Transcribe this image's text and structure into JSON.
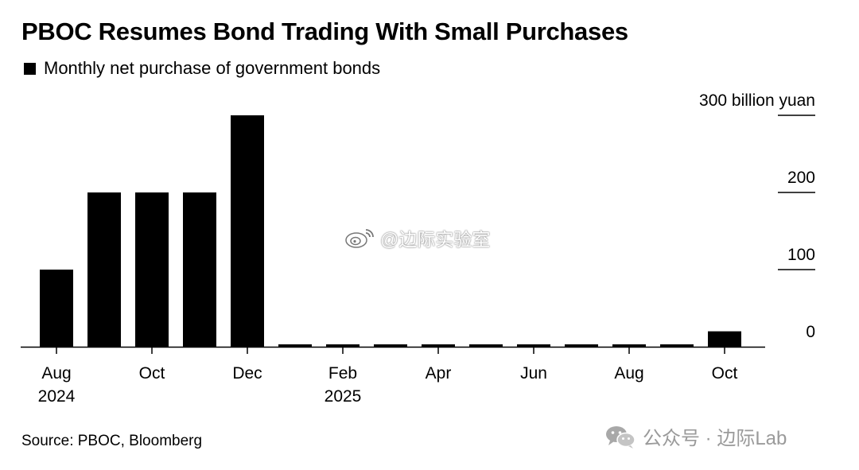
{
  "header": {
    "title": "PBOC Resumes Bond Trading With Small Purchases"
  },
  "legend": {
    "label": "Monthly net purchase of government bonds",
    "color": "#000000"
  },
  "footer": {
    "source": "Source: PBOC, Bloomberg"
  },
  "watermarks": {
    "center_text": "@边际实验室",
    "center_icon": "weibo-icon",
    "bottom_text": "公众号 · 边际Lab",
    "bottom_icon": "wechat-icon"
  },
  "chart_data": {
    "type": "bar",
    "categories": [
      "Aug 2024",
      "Sep 2024",
      "Oct 2024",
      "Nov 2024",
      "Dec 2024",
      "Jan 2025",
      "Feb 2025",
      "Mar 2025",
      "Apr 2025",
      "May 2025",
      "Jun 2025",
      "Jul 2025",
      "Aug 2025",
      "Sep 2025",
      "Oct 2025"
    ],
    "values": [
      100,
      200,
      200,
      200,
      300,
      0,
      0,
      0,
      0,
      0,
      0,
      0,
      0,
      0,
      20
    ],
    "x_tick_labels": [
      {
        "index": 0,
        "line1": "Aug",
        "line2": "2024"
      },
      {
        "index": 2,
        "line1": "Oct",
        "line2": ""
      },
      {
        "index": 4,
        "line1": "Dec",
        "line2": ""
      },
      {
        "index": 6,
        "line1": "Feb",
        "line2": "2025"
      },
      {
        "index": 8,
        "line1": "Apr",
        "line2": ""
      },
      {
        "index": 10,
        "line1": "Jun",
        "line2": ""
      },
      {
        "index": 12,
        "line1": "Aug",
        "line2": ""
      },
      {
        "index": 14,
        "line1": "Oct",
        "line2": ""
      }
    ],
    "y_ticks": [
      {
        "value": 0,
        "label": "0"
      },
      {
        "value": 100,
        "label": "100"
      },
      {
        "value": 200,
        "label": "200"
      },
      {
        "value": 300,
        "label": "300 billion yuan"
      }
    ],
    "ylim": [
      0,
      300
    ],
    "y_axis_side": "right",
    "bar_color": "#000000",
    "grid": false
  }
}
